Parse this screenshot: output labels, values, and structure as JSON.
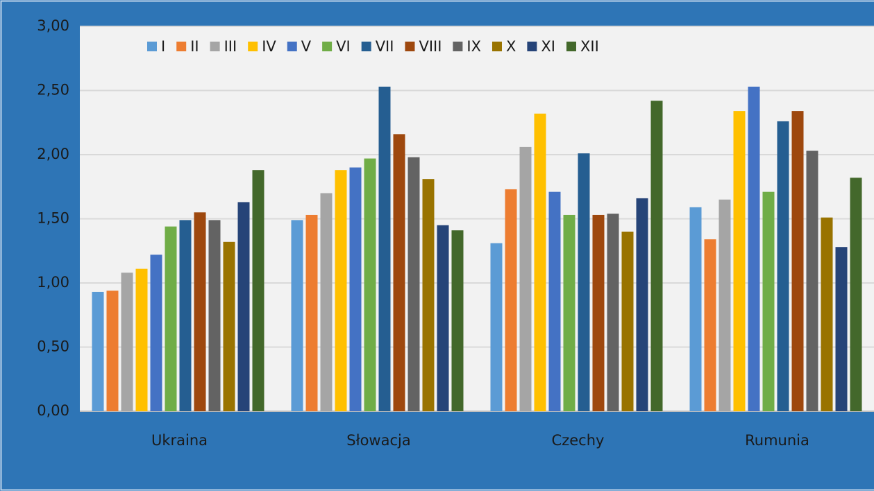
{
  "chart_data": {
    "type": "bar",
    "categories": [
      "Ukraina",
      "Słowacja",
      "Czechy",
      "Rumunia"
    ],
    "series": [
      {
        "name": "I",
        "color": "#5b9bd5",
        "values": [
          0.93,
          1.49,
          1.31,
          1.59
        ]
      },
      {
        "name": "II",
        "color": "#ed7d31",
        "values": [
          0.94,
          1.53,
          1.73,
          1.34
        ]
      },
      {
        "name": "III",
        "color": "#a5a5a5",
        "values": [
          1.08,
          1.7,
          2.06,
          1.65
        ]
      },
      {
        "name": "IV",
        "color": "#ffc000",
        "values": [
          1.11,
          1.88,
          2.32,
          2.34
        ]
      },
      {
        "name": "V",
        "color": "#4472c4",
        "values": [
          1.22,
          1.9,
          1.71,
          2.53
        ]
      },
      {
        "name": "VI",
        "color": "#70ad47",
        "values": [
          1.44,
          1.97,
          1.53,
          1.71
        ]
      },
      {
        "name": "VII",
        "color": "#255e91",
        "values": [
          1.49,
          2.53,
          2.01,
          2.26
        ]
      },
      {
        "name": "VIII",
        "color": "#9e480e",
        "values": [
          1.55,
          2.16,
          1.53,
          2.34
        ]
      },
      {
        "name": "IX",
        "color": "#636363",
        "values": [
          1.49,
          1.98,
          1.54,
          2.03
        ]
      },
      {
        "name": "X",
        "color": "#997300",
        "values": [
          1.32,
          1.81,
          1.4,
          1.51
        ]
      },
      {
        "name": "XI",
        "color": "#264478",
        "values": [
          1.63,
          1.45,
          1.66,
          1.28
        ]
      },
      {
        "name": "XII",
        "color": "#43682b",
        "values": [
          1.88,
          1.41,
          2.42,
          1.82
        ]
      }
    ],
    "ylim": [
      0,
      3
    ],
    "yticks": [
      {
        "value": 0,
        "label": "0,00"
      },
      {
        "value": 0.5,
        "label": "0,50"
      },
      {
        "value": 1,
        "label": "1,00"
      },
      {
        "value": 1.5,
        "label": "1,50"
      },
      {
        "value": 2,
        "label": "2,00"
      },
      {
        "value": 2.5,
        "label": "2,50"
      },
      {
        "value": 3,
        "label": "3,00"
      }
    ],
    "grid": true,
    "legend": "top"
  }
}
